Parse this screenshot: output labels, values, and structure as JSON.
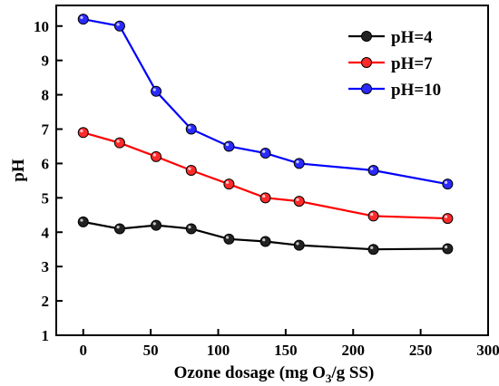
{
  "chart_data": {
    "type": "line",
    "xlabel": "Ozone dosage (mg O3/g SS)",
    "xlabel_parts": {
      "before": "Ozone dosage (mg O",
      "sub": "3",
      "after": "/g SS)"
    },
    "ylabel": "pH",
    "xlim": [
      -20,
      300
    ],
    "ylim": [
      1,
      10.6
    ],
    "x_ticks": [
      0,
      50,
      100,
      150,
      200,
      250,
      300
    ],
    "y_ticks": [
      1,
      2,
      3,
      4,
      5,
      6,
      7,
      8,
      9,
      10
    ],
    "grid": false,
    "legend_position": "top-right",
    "x": [
      0,
      27,
      54,
      80,
      108,
      135,
      160,
      215,
      270
    ],
    "series": [
      {
        "name": "pH=4",
        "color": "#000000",
        "fill": "#222222",
        "values": [
          4.3,
          4.1,
          4.2,
          4.1,
          3.8,
          3.73,
          3.62,
          3.5,
          3.52
        ]
      },
      {
        "name": "pH=7",
        "color": "#ff0000",
        "fill": "#ff2a2a",
        "values": [
          6.9,
          6.6,
          6.2,
          5.8,
          5.4,
          5.0,
          4.9,
          4.47,
          4.4
        ]
      },
      {
        "name": "pH=10",
        "color": "#0000ff",
        "fill": "#2a2aff",
        "values": [
          10.2,
          10.0,
          8.1,
          7.0,
          6.5,
          6.3,
          6.0,
          5.8,
          5.4
        ]
      }
    ]
  }
}
